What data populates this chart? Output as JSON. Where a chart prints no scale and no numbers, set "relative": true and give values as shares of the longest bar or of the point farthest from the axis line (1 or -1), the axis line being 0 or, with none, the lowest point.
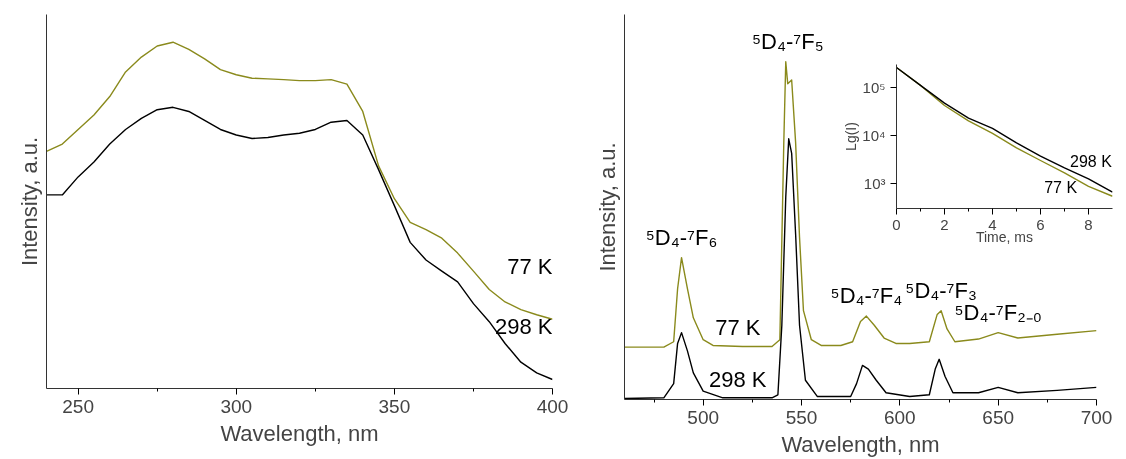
{
  "chart_data": [
    {
      "type": "line",
      "xlabel": "Wavelength, nm",
      "ylabel": "Intensity, a.u.",
      "relative": true,
      "xlim": [
        240,
        400
      ],
      "xticks": [
        250,
        300,
        350,
        400
      ],
      "x": [
        240,
        245,
        250,
        255,
        260,
        265,
        270,
        275,
        280,
        285,
        290,
        295,
        300,
        305,
        310,
        315,
        320,
        325,
        330,
        335,
        340,
        345,
        350,
        355,
        360,
        365,
        370,
        375,
        380,
        385,
        390,
        395,
        400
      ],
      "series": [
        {
          "name": "77 K",
          "color": "#8a8a1c",
          "values": [
            0.685,
            0.706,
            0.748,
            0.79,
            0.843,
            0.914,
            0.957,
            0.989,
            1.0,
            0.979,
            0.952,
            0.921,
            0.906,
            0.896,
            0.894,
            0.892,
            0.889,
            0.889,
            0.892,
            0.879,
            0.8,
            0.643,
            0.548,
            0.48,
            0.459,
            0.434,
            0.391,
            0.339,
            0.286,
            0.25,
            0.228,
            0.213,
            0.2
          ]
        },
        {
          "name": "298 K",
          "color": "#000000",
          "values": [
            0.559,
            0.559,
            0.611,
            0.654,
            0.706,
            0.748,
            0.78,
            0.805,
            0.812,
            0.8,
            0.774,
            0.748,
            0.732,
            0.722,
            0.725,
            0.732,
            0.737,
            0.748,
            0.769,
            0.774,
            0.732,
            0.632,
            0.528,
            0.422,
            0.371,
            0.339,
            0.308,
            0.245,
            0.193,
            0.13,
            0.076,
            0.045,
            0.026
          ]
        }
      ]
    },
    {
      "type": "line",
      "xlabel": "Wavelength, nm",
      "ylabel": "Intensity, a.u.",
      "relative": true,
      "xlim": [
        460,
        700
      ],
      "xticks": [
        500,
        550,
        600,
        650,
        700
      ],
      "series": [
        {
          "name": "77 K",
          "color": "#8a8a1c",
          "x": [
            460,
            480,
            485,
            487,
            489,
            492,
            495,
            500,
            505,
            520,
            535,
            539,
            541,
            542,
            543,
            545,
            547,
            549,
            551,
            555,
            560,
            570,
            576,
            580,
            583,
            587,
            592,
            598,
            605,
            615,
            619,
            621,
            624,
            628,
            640,
            650,
            660,
            680,
            700
          ],
          "values": [
            0.155,
            0.155,
            0.171,
            0.328,
            0.42,
            0.328,
            0.242,
            0.177,
            0.16,
            0.157,
            0.157,
            0.177,
            0.762,
            1.0,
            0.935,
            0.946,
            0.762,
            0.48,
            0.263,
            0.177,
            0.16,
            0.16,
            0.171,
            0.231,
            0.247,
            0.22,
            0.182,
            0.166,
            0.166,
            0.171,
            0.252,
            0.263,
            0.209,
            0.171,
            0.179,
            0.198,
            0.182,
            0.193,
            0.204
          ]
        },
        {
          "name": "298 K",
          "color": "#000000",
          "x": [
            460,
            480,
            485,
            487,
            489,
            492,
            495,
            500,
            510,
            535,
            538,
            540,
            542,
            543.5,
            545,
            547,
            549,
            552,
            558,
            575,
            578,
            581,
            584,
            588,
            593,
            605,
            615,
            618,
            620,
            623,
            627,
            640,
            650,
            660,
            680,
            700
          ],
          "values": [
            0.003,
            0.005,
            0.047,
            0.166,
            0.198,
            0.144,
            0.079,
            0.025,
            0.005,
            0.005,
            0.014,
            0.22,
            0.6,
            0.772,
            0.729,
            0.491,
            0.22,
            0.057,
            0.009,
            0.009,
            0.047,
            0.101,
            0.09,
            0.057,
            0.02,
            0.009,
            0.014,
            0.09,
            0.119,
            0.068,
            0.02,
            0.02,
            0.036,
            0.02,
            0.027,
            0.036
          ]
        }
      ],
      "annotations": [
        {
          "text": "⁵D₄-⁷F₆",
          "x": 489,
          "y": 0.42
        },
        {
          "text": "⁵D₄-⁷F₅",
          "x": 543,
          "y": 1.0
        },
        {
          "text": "⁵D₄-⁷F₄",
          "x": 583,
          "y": 0.247
        },
        {
          "text": "⁵D₄-⁷F₃",
          "x": 621,
          "y": 0.263
        },
        {
          "text": "⁵D₄-⁷F₂₋₀",
          "x": 650,
          "y": 0.198
        }
      ]
    },
    {
      "type": "line",
      "xlabel": "Time, ms",
      "ylabel": "Lg(I)",
      "log": true,
      "xlim": [
        0,
        9
      ],
      "xticks": [
        0,
        2,
        4,
        6,
        8
      ],
      "ylim": [
        300,
        300000
      ],
      "yticks": [
        {
          "value": 1000,
          "label": "10³"
        },
        {
          "value": 10000,
          "label": "10⁴"
        },
        {
          "value": 100000,
          "label": "10⁵"
        }
      ],
      "x": [
        0,
        1,
        2,
        3,
        4,
        5,
        6,
        7,
        8,
        9
      ],
      "series": [
        {
          "name": "77 K",
          "color": "#8a8a1c",
          "values": [
            260000,
            110000,
            42000,
            20000,
            11000,
            5500,
            3000,
            1650,
            870,
            540
          ]
        },
        {
          "name": "298 K",
          "color": "#000000",
          "values": [
            260000,
            110000,
            47000,
            23000,
            14000,
            7000,
            3700,
            2100,
            1240,
            660
          ]
        }
      ]
    }
  ]
}
